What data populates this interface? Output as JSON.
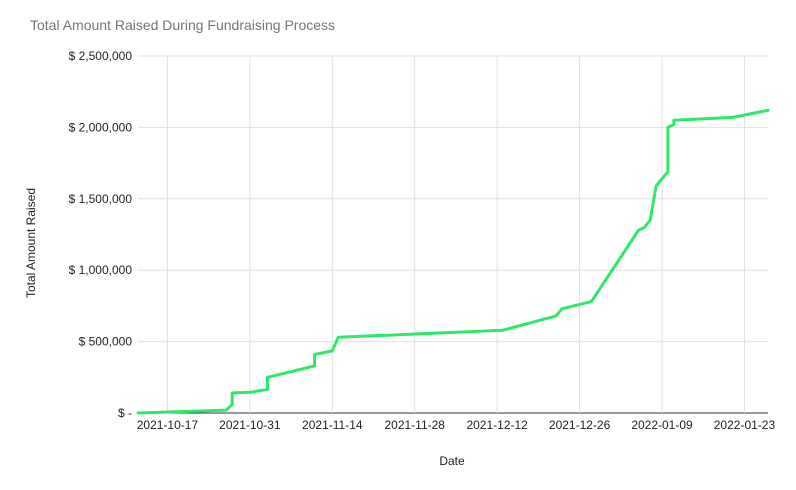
{
  "chart_data": {
    "type": "line",
    "title": "Total Amount Raised During Fundraising Process",
    "xlabel": "Date",
    "ylabel": "Total Amount Raised",
    "x_ticks": [
      "2021-10-17",
      "2021-10-31",
      "2021-11-14",
      "2021-11-28",
      "2021-12-12",
      "2021-12-26",
      "2022-01-09",
      "2022-01-23"
    ],
    "y_ticks": [
      "$ -",
      "$ 500,000",
      "$ 1,000,000",
      "$ 1,500,000",
      "$ 2,000,000",
      "$ 2,500,000"
    ],
    "xlim": [
      "2021-10-12",
      "2022-01-27"
    ],
    "ylim": [
      0,
      2500000
    ],
    "grid": true,
    "legend": "none",
    "color": "#2ee86c",
    "series": [
      {
        "points": [
          [
            "2021-10-12",
            0
          ],
          [
            "2021-10-27",
            20000
          ],
          [
            "2021-10-28",
            60000
          ],
          [
            "2021-10-28",
            140000
          ],
          [
            "2021-10-31",
            145000
          ],
          [
            "2021-11-03",
            165000
          ],
          [
            "2021-11-03",
            250000
          ],
          [
            "2021-11-11",
            330000
          ],
          [
            "2021-11-11",
            410000
          ],
          [
            "2021-11-14",
            435000
          ],
          [
            "2021-11-15",
            530000
          ],
          [
            "2021-12-13",
            580000
          ],
          [
            "2021-12-22",
            680000
          ],
          [
            "2021-12-23",
            730000
          ],
          [
            "2021-12-28",
            780000
          ],
          [
            "2022-01-05",
            1280000
          ],
          [
            "2022-01-06",
            1300000
          ],
          [
            "2022-01-07",
            1350000
          ],
          [
            "2022-01-08",
            1590000
          ],
          [
            "2022-01-10",
            1690000
          ],
          [
            "2022-01-10",
            2000000
          ],
          [
            "2022-01-11",
            2020000
          ],
          [
            "2022-01-11",
            2050000
          ],
          [
            "2022-01-21",
            2070000
          ],
          [
            "2022-01-27",
            2120000
          ]
        ]
      }
    ]
  }
}
